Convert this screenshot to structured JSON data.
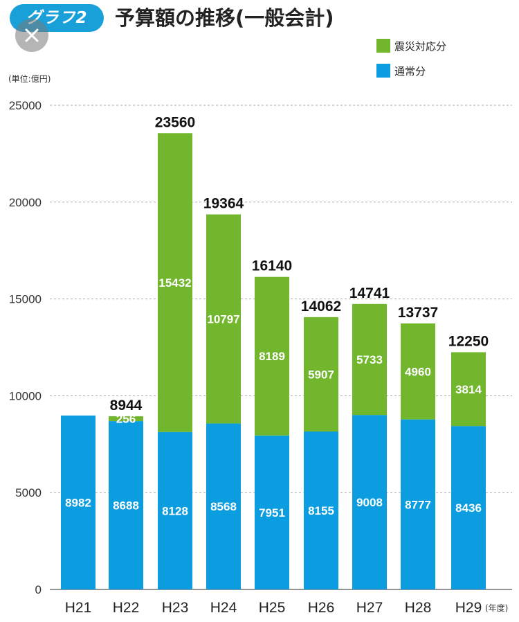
{
  "header": {
    "badge": "グラフ2",
    "title": "予算額の推移(一般会計)"
  },
  "overlay": {
    "close_icon": "close-icon"
  },
  "chart_data": {
    "type": "bar",
    "stacked": true,
    "unit_label": "(単位:億円)",
    "x_unit_label": "(年度)",
    "categories": [
      "H21",
      "H22",
      "H23",
      "H24",
      "H25",
      "H26",
      "H27",
      "H28",
      "H29"
    ],
    "series": [
      {
        "name": "通常分",
        "color": "#0b9de0",
        "values": [
          8982,
          8688,
          8128,
          8568,
          7951,
          8155,
          9008,
          8777,
          8436
        ]
      },
      {
        "name": "震災対応分",
        "color": "#72b62e",
        "values": [
          null,
          256,
          15432,
          10797,
          8189,
          5907,
          5733,
          4960,
          3814
        ]
      }
    ],
    "totals": [
      null,
      8944,
      23560,
      19364,
      16140,
      14062,
      14741,
      13737,
      12250
    ],
    "y_ticks": [
      0,
      5000,
      10000,
      15000,
      20000,
      25000
    ],
    "ylim": [
      0,
      25000
    ],
    "grid": true,
    "legend_position": "top-right"
  }
}
